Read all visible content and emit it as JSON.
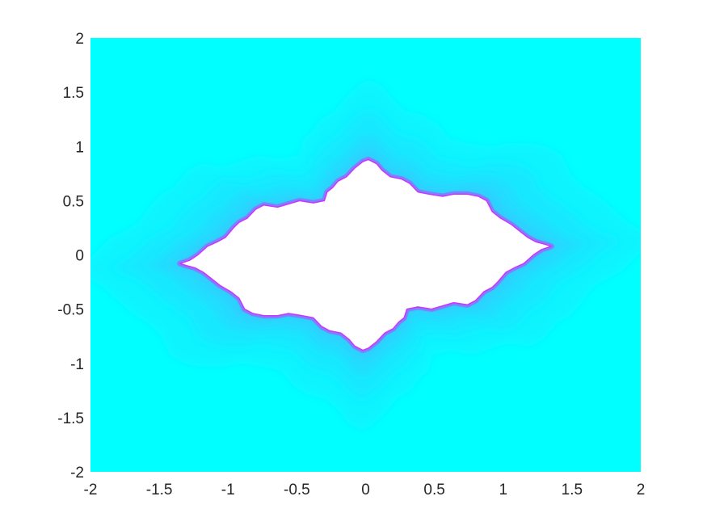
{
  "chart_data": {
    "type": "heatmap",
    "title": "",
    "xlabel": "",
    "ylabel": "",
    "xlim": [
      -2,
      2
    ],
    "ylim": [
      -2,
      2
    ],
    "xticks": [
      -2,
      -1.5,
      -1,
      -0.5,
      0,
      0.5,
      1,
      1.5,
      2
    ],
    "yticks": [
      -2,
      -1.5,
      -1,
      -0.5,
      0,
      0.5,
      1,
      1.5,
      2
    ],
    "xtick_labels": [
      "-2",
      "-1.5",
      "-1",
      "-0.5",
      "0",
      "0.5",
      "1",
      "1.5",
      "2"
    ],
    "ytick_labels": [
      "-2",
      "-1.5",
      "-1",
      "-0.5",
      "0",
      "0.5",
      "1",
      "1.5",
      "2"
    ],
    "grid": false,
    "colormap": "cool",
    "colors": {
      "background_far": "#00ffff",
      "band_1": "#0bf4ff",
      "band_2": "#16e9ff",
      "band_3": "#22ddff",
      "band_4": "#33ccff",
      "edge": "#9966ff",
      "edge_outer": "#cc33ff",
      "interior": "#ffffff"
    },
    "boundary_outline": [
      [
        -1.35,
        -0.08
      ],
      [
        -1.28,
        -0.05
      ],
      [
        -1.22,
        0.0
      ],
      [
        -1.15,
        0.08
      ],
      [
        -1.08,
        0.12
      ],
      [
        -1.02,
        0.16
      ],
      [
        -0.96,
        0.25
      ],
      [
        -0.92,
        0.3
      ],
      [
        -0.86,
        0.34
      ],
      [
        -0.8,
        0.42
      ],
      [
        -0.74,
        0.46
      ],
      [
        -0.64,
        0.44
      ],
      [
        -0.56,
        0.47
      ],
      [
        -0.48,
        0.5
      ],
      [
        -0.38,
        0.48
      ],
      [
        -0.3,
        0.5
      ],
      [
        -0.28,
        0.58
      ],
      [
        -0.24,
        0.62
      ],
      [
        -0.2,
        0.68
      ],
      [
        -0.14,
        0.72
      ],
      [
        -0.08,
        0.8
      ],
      [
        -0.02,
        0.86
      ],
      [
        0.02,
        0.88
      ],
      [
        0.08,
        0.84
      ],
      [
        0.12,
        0.78
      ],
      [
        0.18,
        0.72
      ],
      [
        0.26,
        0.7
      ],
      [
        0.32,
        0.66
      ],
      [
        0.38,
        0.58
      ],
      [
        0.46,
        0.56
      ],
      [
        0.56,
        0.54
      ],
      [
        0.64,
        0.56
      ],
      [
        0.74,
        0.56
      ],
      [
        0.82,
        0.54
      ],
      [
        0.88,
        0.5
      ],
      [
        0.92,
        0.4
      ],
      [
        0.98,
        0.34
      ],
      [
        1.06,
        0.28
      ],
      [
        1.12,
        0.22
      ],
      [
        1.18,
        0.16
      ],
      [
        1.24,
        0.12
      ],
      [
        1.3,
        0.1
      ],
      [
        1.35,
        0.08
      ],
      [
        1.28,
        0.05
      ],
      [
        1.22,
        0.0
      ],
      [
        1.15,
        -0.08
      ],
      [
        1.08,
        -0.12
      ],
      [
        1.02,
        -0.16
      ],
      [
        0.96,
        -0.25
      ],
      [
        0.92,
        -0.3
      ],
      [
        0.86,
        -0.34
      ],
      [
        0.8,
        -0.42
      ],
      [
        0.74,
        -0.46
      ],
      [
        0.64,
        -0.44
      ],
      [
        0.56,
        -0.47
      ],
      [
        0.48,
        -0.5
      ],
      [
        0.38,
        -0.48
      ],
      [
        0.3,
        -0.5
      ],
      [
        0.28,
        -0.58
      ],
      [
        0.24,
        -0.62
      ],
      [
        0.2,
        -0.68
      ],
      [
        0.14,
        -0.72
      ],
      [
        0.08,
        -0.8
      ],
      [
        0.02,
        -0.86
      ],
      [
        -0.02,
        -0.88
      ],
      [
        -0.08,
        -0.84
      ],
      [
        -0.12,
        -0.78
      ],
      [
        -0.18,
        -0.72
      ],
      [
        -0.26,
        -0.7
      ],
      [
        -0.32,
        -0.66
      ],
      [
        -0.38,
        -0.58
      ],
      [
        -0.46,
        -0.56
      ],
      [
        -0.56,
        -0.54
      ],
      [
        -0.64,
        -0.56
      ],
      [
        -0.74,
        -0.56
      ],
      [
        -0.82,
        -0.54
      ],
      [
        -0.88,
        -0.5
      ],
      [
        -0.92,
        -0.4
      ],
      [
        -0.98,
        -0.34
      ],
      [
        -1.06,
        -0.28
      ],
      [
        -1.12,
        -0.22
      ],
      [
        -1.18,
        -0.16
      ],
      [
        -1.24,
        -0.12
      ],
      [
        -1.3,
        -0.1
      ]
    ]
  }
}
